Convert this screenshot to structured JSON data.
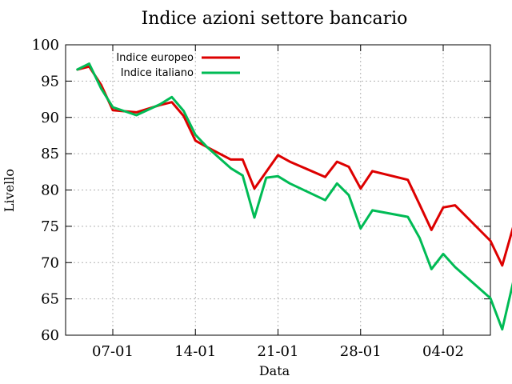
{
  "chart_data": {
    "type": "line",
    "title": "Indice azioni settore bancario",
    "xlabel": "Data",
    "ylabel": "Livello",
    "ylim": [
      60,
      100
    ],
    "yticks": [
      60,
      65,
      70,
      75,
      80,
      85,
      90,
      95,
      100
    ],
    "xlim": [
      "2008-01-03",
      "2008-02-08"
    ],
    "xticks": [
      {
        "date": "2008-01-07",
        "label": "07-01"
      },
      {
        "date": "2008-01-14",
        "label": "14-01"
      },
      {
        "date": "2008-01-21",
        "label": "21-01"
      },
      {
        "date": "2008-01-28",
        "label": "28-01"
      },
      {
        "date": "2008-02-04",
        "label": "04-02"
      }
    ],
    "grid": true,
    "legend_position": "top-right",
    "x": [
      "2008-01-04",
      "2008-01-05",
      "2008-01-06",
      "2008-01-07",
      "2008-01-09",
      "2008-01-11",
      "2008-01-12",
      "2008-01-13",
      "2008-01-14",
      "2008-01-15",
      "2008-01-17",
      "2008-01-18",
      "2008-01-19",
      "2008-01-20",
      "2008-01-21",
      "2008-01-22",
      "2008-01-25",
      "2008-01-26",
      "2008-01-27",
      "2008-01-28",
      "2008-01-29",
      "2008-02-01",
      "2008-02-02",
      "2008-02-03",
      "2008-02-04",
      "2008-02-05",
      "2008-02-08",
      "2008-02-09",
      "2008-02-10"
    ],
    "series": [
      {
        "name": "Indice europeo",
        "color": "#dd0000",
        "values": [
          96.6,
          97.0,
          94.5,
          91.0,
          90.7,
          91.7,
          92.1,
          90.2,
          86.8,
          85.9,
          84.2,
          84.2,
          80.2,
          82.5,
          84.8,
          83.9,
          81.8,
          83.9,
          83.2,
          80.2,
          82.6,
          81.4,
          78.0,
          74.5,
          77.6,
          77.9,
          73.0,
          69.6,
          75.3
        ]
      },
      {
        "name": "Indice italiano",
        "color": "#00bb55",
        "values": [
          96.6,
          97.4,
          94.0,
          91.4,
          90.3,
          91.8,
          92.8,
          90.9,
          87.6,
          85.9,
          83.0,
          82.0,
          76.2,
          81.7,
          81.9,
          80.9,
          78.6,
          80.9,
          79.3,
          74.7,
          77.2,
          76.3,
          73.4,
          69.1,
          71.2,
          69.4,
          65.1,
          60.8,
          67.8
        ]
      }
    ]
  }
}
